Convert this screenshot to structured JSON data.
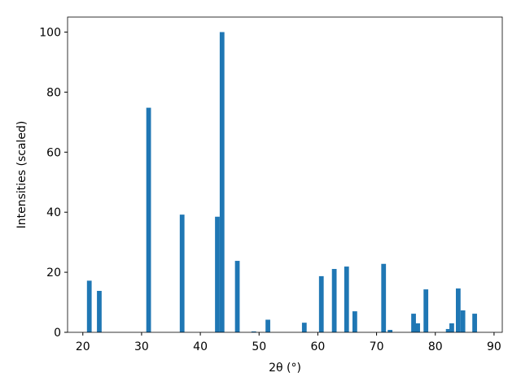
{
  "chart_data": {
    "type": "bar",
    "xlabel": "2θ (°)",
    "ylabel": "Intensities (scaled)",
    "x": [
      21.1,
      22.8,
      31.2,
      36.9,
      42.9,
      43.7,
      46.3,
      49.1,
      51.5,
      57.7,
      60.6,
      62.8,
      64.9,
      66.3,
      71.2,
      72.3,
      76.3,
      77.0,
      78.4,
      82.2,
      82.8,
      83.9,
      84.7,
      86.7
    ],
    "values": [
      17.2,
      13.8,
      74.8,
      39.2,
      38.5,
      100,
      23.8,
      0.3,
      4.2,
      3.2,
      18.7,
      21.1,
      21.9,
      7.0,
      22.8,
      0.8,
      6.2,
      3.0,
      14.3,
      1.1,
      3.0,
      14.6,
      7.3,
      6.2
    ],
    "bar_width": 0.8,
    "color": "#1f77b4",
    "xlim": [
      17.4,
      91.4
    ],
    "xticks": [
      20,
      30,
      40,
      50,
      60,
      70,
      80,
      90
    ],
    "ylim": [
      0,
      105
    ],
    "yticks": [
      0,
      20,
      40,
      60,
      80,
      100
    ]
  }
}
